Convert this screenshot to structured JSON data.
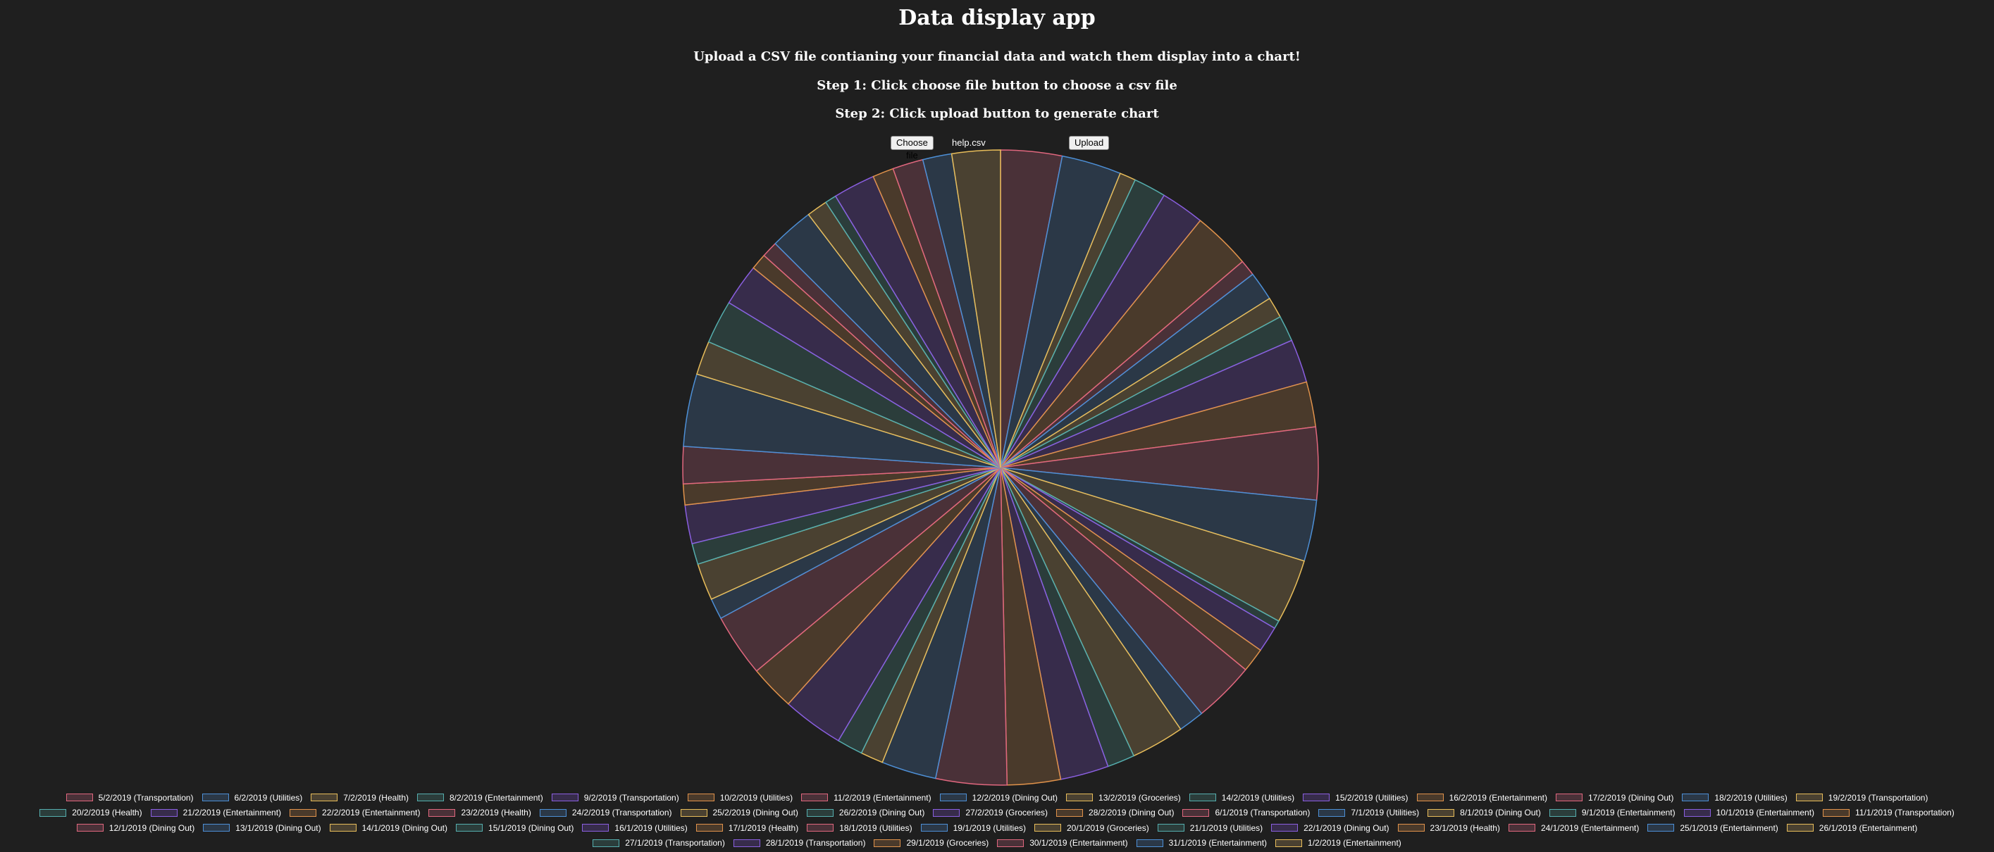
{
  "page": {
    "title": "Data display app",
    "subtitle": "Upload a CSV file contianing your financial data and watch them display into a chart!",
    "step1": "Step 1: Click choose file button to choose a csv file",
    "step2": "Step 2: Click upload button to generate chart"
  },
  "upload": {
    "choose_label": "Choose file",
    "filename": "help.csv",
    "upload_label": "Upload"
  },
  "palette": {
    "red": {
      "stroke": "#e0677e",
      "fill": "#4a3138"
    },
    "blue": {
      "stroke": "#4d8fd6",
      "fill": "#2b3847"
    },
    "yellow": {
      "stroke": "#e8bd5a",
      "fill": "#4a4131"
    },
    "teal": {
      "stroke": "#55aeae",
      "fill": "#2b3d3b"
    },
    "purple": {
      "stroke": "#8a5fe0",
      "fill": "#372c4b"
    },
    "orange": {
      "stroke": "#e0924b",
      "fill": "#4a3a2b"
    }
  },
  "chart_data": {
    "type": "pie",
    "legend_position": "bottom",
    "slices": [
      {
        "label": "5/2/2019 (Transportation)",
        "value": 3.8
      },
      {
        "label": "6/2/2019 (Utilities)",
        "value": 3.7
      },
      {
        "label": "7/2/2019 (Health)",
        "value": 1.0
      },
      {
        "label": "8/2/2019 (Entertainment)",
        "value": 2.0
      },
      {
        "label": "9/2/2019 (Transportation)",
        "value": 2.7
      },
      {
        "label": "10/2/2019 (Utilities)",
        "value": 3.6
      },
      {
        "label": "11/2/2019 (Entertainment)",
        "value": 1.0
      },
      {
        "label": "12/2/2019 (Dining Out)",
        "value": 1.8
      },
      {
        "label": "13/2/2019 (Groceries)",
        "value": 1.3
      },
      {
        "label": "14/2/2019 (Utilities)",
        "value": 1.6
      },
      {
        "label": "15/2/2019 (Utilities)",
        "value": 2.7
      },
      {
        "label": "16/2/2019 (Entertainment)",
        "value": 2.8
      },
      {
        "label": "17/2/2019 (Dining Out)",
        "value": 4.5
      },
      {
        "label": "18/2/2019 (Utilities)",
        "value": 3.8
      },
      {
        "label": "19/2/2019 (Transportation)",
        "value": 4.0
      },
      {
        "label": "20/2/2019 (Health)",
        "value": 0.5
      },
      {
        "label": "21/2/2019 (Entertainment)",
        "value": 1.6
      },
      {
        "label": "22/2/2019 (Entertainment)",
        "value": 1.5
      },
      {
        "label": "23/2/2019 (Health)",
        "value": 3.8
      },
      {
        "label": "24/2/2019 (Transportation)",
        "value": 1.6
      },
      {
        "label": "25/2/2019 (Dining Out)",
        "value": 3.3
      },
      {
        "label": "26/2/2019 (Dining Out)",
        "value": 1.7
      },
      {
        "label": "27/2/2019 (Groceries)",
        "value": 3.0
      },
      {
        "label": "28/2/2019 (Dining Out)",
        "value": 3.3
      },
      {
        "label": "6/1/2019 (Transportation)",
        "value": 4.4
      },
      {
        "label": "7/1/2019 (Utilities)",
        "value": 3.4
      },
      {
        "label": "8/1/2019 (Dining Out)",
        "value": 1.4
      },
      {
        "label": "9/1/2019 (Entertainment)",
        "value": 1.6
      },
      {
        "label": "10/1/2019 (Entertainment)",
        "value": 3.8
      },
      {
        "label": "11/1/2019 (Transportation)",
        "value": 2.8
      },
      {
        "label": "12/1/2019 (Dining Out)",
        "value": 3.9
      },
      {
        "label": "13/1/2019 (Dining Out)",
        "value": 1.3
      },
      {
        "label": "14/1/2019 (Dining Out)",
        "value": 2.3
      },
      {
        "label": "15/1/2019 (Dining Out)",
        "value": 1.3
      },
      {
        "label": "16/1/2019 (Utilities)",
        "value": 2.4
      },
      {
        "label": "17/1/2019 (Health)",
        "value": 1.3
      },
      {
        "label": "18/1/2019 (Utilities)",
        "value": 2.3
      },
      {
        "label": "19/1/2019 (Utilities)",
        "value": 4.5
      },
      {
        "label": "20/1/2019 (Groceries)",
        "value": 2.1
      },
      {
        "label": "21/1/2019 (Utilities)",
        "value": 2.7
      },
      {
        "label": "22/1/2019 (Dining Out)",
        "value": 2.6
      },
      {
        "label": "23/1/2019 (Health)",
        "value": 1.0
      },
      {
        "label": "24/1/2019 (Entertainment)",
        "value": 1.0
      },
      {
        "label": "25/1/2019 (Entertainment)",
        "value": 2.7
      },
      {
        "label": "26/1/2019 (Entertainment)",
        "value": 1.3
      },
      {
        "label": "27/1/2019 (Transportation)",
        "value": 0.7
      },
      {
        "label": "28/1/2019 (Transportation)",
        "value": 2.6
      },
      {
        "label": "29/1/2019 (Groceries)",
        "value": 1.3
      },
      {
        "label": "30/1/2019 (Entertainment)",
        "value": 1.9
      },
      {
        "label": "31/1/2019 (Entertainment)",
        "value": 1.8
      },
      {
        "label": "1/2/2019 (Entertainment)",
        "value": 3.0
      }
    ],
    "colors": [
      "red",
      "blue",
      "yellow",
      "teal",
      "purple",
      "orange"
    ]
  }
}
